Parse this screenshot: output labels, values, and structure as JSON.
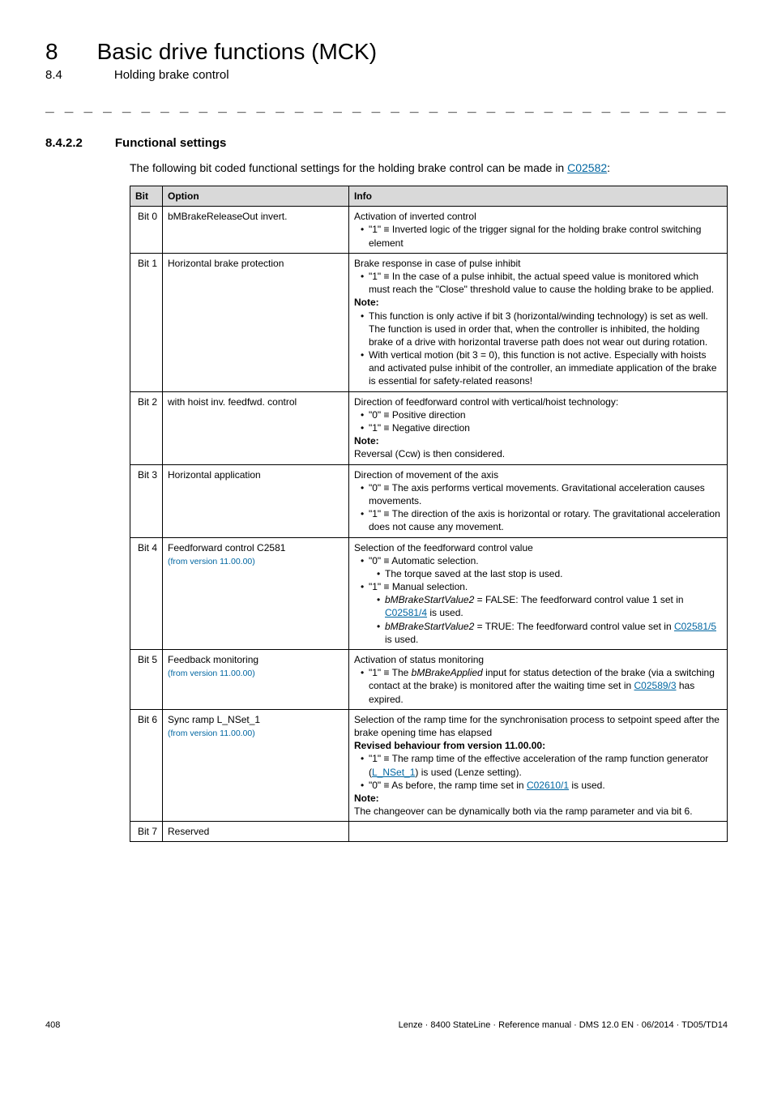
{
  "chapter": {
    "number": "8",
    "title": "Basic drive functions (MCK)"
  },
  "subsection": {
    "number": "8.4",
    "title": "Holding brake control"
  },
  "section": {
    "number": "8.4.2.2",
    "title": "Functional settings"
  },
  "intro": {
    "text_before": "The following bit coded functional settings for the holding brake control can be made in ",
    "link_text": "C02582",
    "text_after": ":"
  },
  "table": {
    "headers": {
      "bit": "Bit",
      "option": "Option",
      "info": "Info"
    },
    "rows": [
      {
        "bit": "Bit 0",
        "option": "bMBrakeReleaseOut invert.",
        "info_html": "Activation of inverted control<ul><li>\"1\" ≡ Inverted logic of the trigger signal for the holding brake control switching element</li></ul>"
      },
      {
        "bit": "Bit 1",
        "option": "Horizontal brake protection",
        "info_html": "Brake response in case of pulse inhibit<ul><li>\"1\" ≡ In the case of a pulse inhibit, the actual speed value is monitored which must reach the \"Close\" threshold value to cause the holding brake to be applied.</li></ul><span class=\"note\">Note:</span><ul><li>This function is only active if bit 3 (horizontal/winding technology) is set as well. The function is used in order that, when the controller is inhibited, the holding brake of a drive with horizontal traverse path does not wear out during rotation.</li><li>With vertical motion (bit 3 = 0), this function is not active. Especially with hoists and activated pulse inhibit of the controller, an immediate application of the brake is essential for safety-related reasons!</li></ul>"
      },
      {
        "bit": "Bit 2",
        "option": "with hoist inv. feedfwd. control",
        "info_html": "Direction of feedforward control with vertical/hoist technology:<ul><li>\"0\" ≡ Positive direction</li><li>\"1\" ≡ Negative direction</li></ul><span class=\"note\">Note:</span><br>Reversal (Ccw) is then considered."
      },
      {
        "bit": "Bit 3",
        "option": "Horizontal application",
        "info_html": "Direction of movement of the axis<ul><li>\"0\" ≡ The axis performs vertical movements. Gravitational acceleration causes movements.</li><li>\"1\" ≡ The direction of the axis is horizontal or rotary. The gravitational acceleration does not cause any movement.</li></ul>"
      },
      {
        "bit": "Bit 4",
        "option": "Feedforward control C2581",
        "from_version": "(from version 11.00.00)",
        "info_html": "Selection of the feedforward control value<ul><li>\"0\" ≡ Automatic selection.<ul><li>The torque saved at the last stop is used.</li></ul></li><li>\"1\" ≡ Manual selection.<ul><li><em>bMBrakeStartValue2</em> = FALSE: The feedforward control value 1 set in <a>C02581/4</a> is used.</li><li><em>bMBrakeStartValue2</em> = TRUE: The feedforward control value set in <a>C02581/5</a> is used.</li></ul></li></ul>"
      },
      {
        "bit": "Bit 5",
        "option": "Feedback monitoring",
        "from_version": "(from version 11.00.00)",
        "info_html": "Activation of status monitoring<ul><li>\"1\" ≡ The <em>bMBrakeApplied</em> input for status detection of the brake (via a switching contact at the brake) is monitored after the waiting time set in <a>C02589/3</a> has expired.</li></ul>"
      },
      {
        "bit": "Bit 6",
        "option": "Sync ramp L_NSet_1",
        "from_version": "(from version 11.00.00)",
        "info_html": "Selection of the ramp time for the synchronisation process to setpoint speed after the brake opening time has elapsed<br><span class=\"note\">Revised behaviour from version 11.00.00:</span><ul><li>\"1\" ≡ The ramp time of the effective acceleration of the ramp function generator (<a>L_NSet_1</a>) is used (Lenze setting).</li><li>\"0\" ≡ As before, the ramp time set in <a>C02610/1</a> is used.</li></ul><span class=\"note\">Note:</span><br>The changeover can be dynamically both via the ramp parameter and via bit 6."
      },
      {
        "bit": "Bit 7",
        "option": "Reserved",
        "info_html": ""
      }
    ]
  },
  "footer": {
    "page": "408",
    "right": "Lenze · 8400 StateLine · Reference manual · DMS 12.0 EN · 06/2014 · TD05/TD14"
  }
}
